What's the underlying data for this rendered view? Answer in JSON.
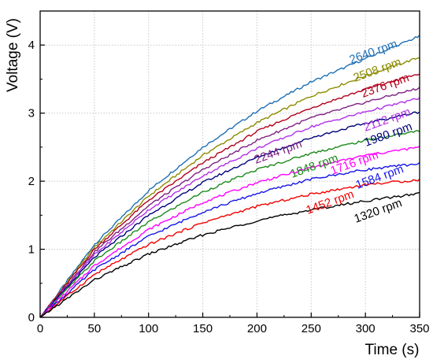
{
  "chart_data": {
    "type": "line",
    "title": "",
    "xlabel": "Time (s)",
    "ylabel": "Voltage (V)",
    "xlim": [
      0,
      350
    ],
    "ylim": [
      0,
      4.5
    ],
    "xticks": [
      0,
      50,
      100,
      150,
      200,
      250,
      300,
      350
    ],
    "yticks": [
      0,
      1,
      2,
      3,
      4
    ],
    "grid": true,
    "legend": "inline labels near line ends",
    "x": [
      0,
      50,
      100,
      150,
      200,
      250,
      300,
      350
    ],
    "series": [
      {
        "name": "2640 rpm",
        "color": "#1f6fb4",
        "values": [
          0,
          1.07,
          1.86,
          2.5,
          3.03,
          3.46,
          3.8,
          4.13
        ]
      },
      {
        "name": "2508 rpm",
        "color": "#8b8b00",
        "values": [
          0,
          1.03,
          1.78,
          2.38,
          2.86,
          3.25,
          3.55,
          3.82
        ]
      },
      {
        "name": "2376 rpm",
        "color": "#b3001b",
        "values": [
          0,
          1.0,
          1.72,
          2.27,
          2.73,
          3.08,
          3.35,
          3.58
        ]
      },
      {
        "name": "2244 rpm",
        "color": "#7d2080",
        "values": [
          0,
          0.96,
          1.64,
          2.17,
          2.6,
          2.93,
          3.16,
          3.37
        ]
      },
      {
        "name": "2112 rpm",
        "color": "#b02ee8",
        "values": [
          0,
          0.92,
          1.58,
          2.08,
          2.48,
          2.8,
          3.02,
          3.22
        ]
      },
      {
        "name": "1980 rpm",
        "color": "#00007d",
        "values": [
          0,
          0.88,
          1.5,
          1.98,
          2.35,
          2.64,
          2.85,
          3.02
        ]
      },
      {
        "name": "1848 rpm",
        "color": "#1a8a1a",
        "values": [
          0,
          0.83,
          1.4,
          1.84,
          2.17,
          2.41,
          2.6,
          2.74
        ]
      },
      {
        "name": "1716 rpm",
        "color": "#ff00ff",
        "values": [
          0,
          0.76,
          1.29,
          1.69,
          1.98,
          2.2,
          2.38,
          2.5
        ]
      },
      {
        "name": "1584 rpm",
        "color": "#1515e6",
        "values": [
          0,
          0.7,
          1.19,
          1.55,
          1.82,
          2.03,
          2.17,
          2.26
        ]
      },
      {
        "name": "1452 rpm",
        "color": "#f20000",
        "values": [
          0,
          0.63,
          1.07,
          1.39,
          1.63,
          1.81,
          1.95,
          2.02
        ]
      },
      {
        "name": "1320 rpm",
        "color": "#000000",
        "values": [
          0,
          0.55,
          0.93,
          1.21,
          1.42,
          1.58,
          1.71,
          1.82
        ]
      }
    ]
  }
}
